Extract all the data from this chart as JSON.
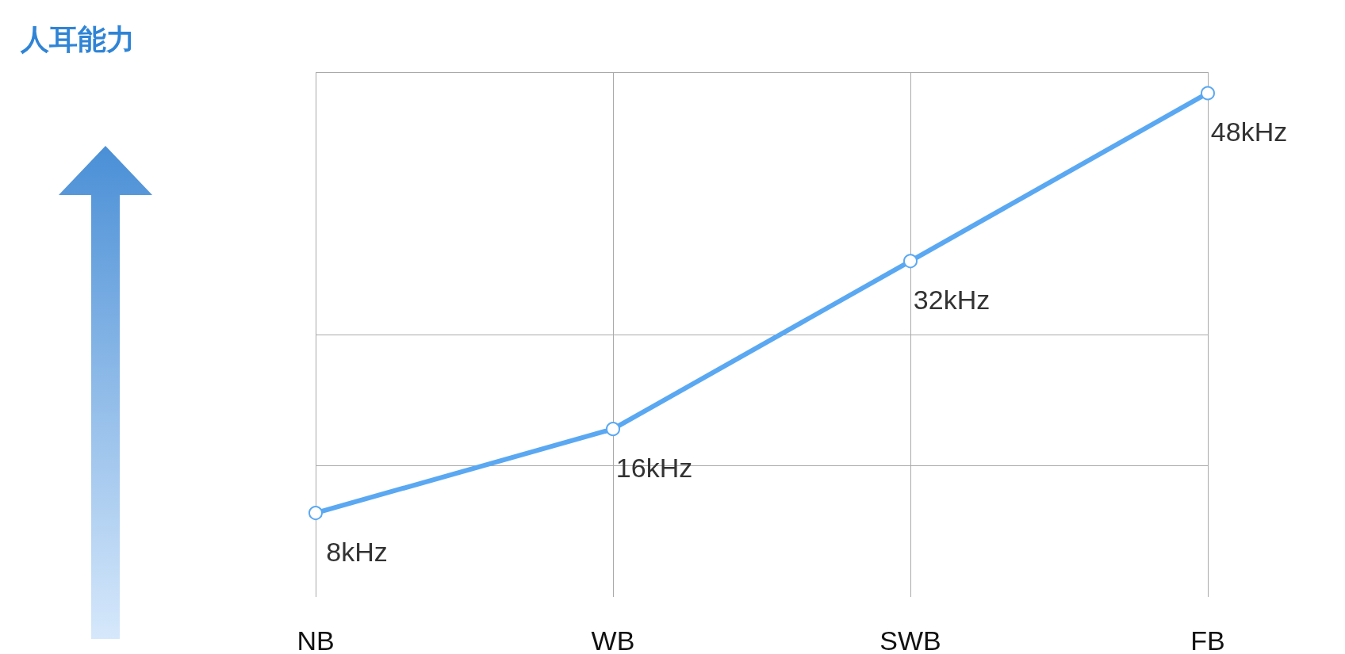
{
  "chart_data": {
    "type": "line",
    "annotations": [
      "人耳能力"
    ],
    "categories": [
      "NB",
      "WB",
      "SWB",
      "FB"
    ],
    "series": [
      {
        "color": "#5aa8f2",
        "values": [
          8,
          16,
          32,
          48
        ],
        "value_labels": [
          "8kHz",
          "16kHz",
          "32kHz",
          "48kHz"
        ]
      }
    ],
    "ylim": [
      0,
      50
    ],
    "yticks": [
      {
        "value": 12.5,
        "label": null
      },
      {
        "value": 25,
        "label": null
      },
      {
        "value": 50,
        "label": null
      }
    ],
    "grid": true,
    "marker": "circle",
    "line_style": "solid",
    "tick_labels": "x"
  }
}
